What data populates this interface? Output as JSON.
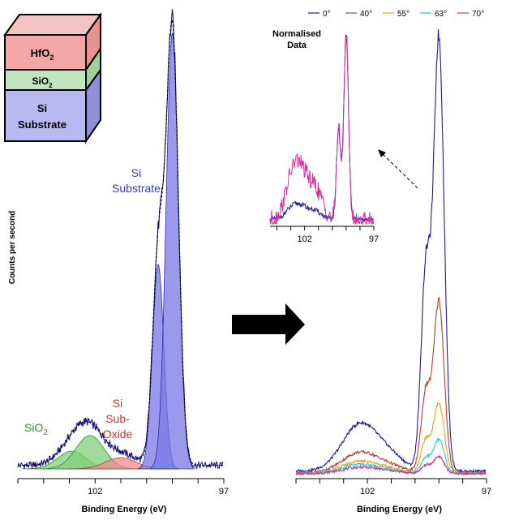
{
  "stack": {
    "hfo2": {
      "label": "HfO",
      "sub": "2"
    },
    "sio2": {
      "label": "SiO",
      "sub": "2"
    },
    "si": {
      "line1": "Si",
      "line2": "Substrate"
    },
    "colors": {
      "hfo2": "#f4a7a7",
      "sio2": "#bfe6bd",
      "si": "#b9b9f2"
    }
  },
  "y_axis_label": "Counts per second",
  "arrow_present": true,
  "chart_data": [
    {
      "type": "line",
      "title": "",
      "xlabel": "Binding Energy (eV)",
      "ylabel": "Counts per second",
      "x_reversed": true,
      "xlim": [
        105,
        97
      ],
      "ylim": [
        0,
        100
      ],
      "xticks": [
        105,
        104,
        103,
        102,
        101,
        100,
        99,
        98,
        97
      ],
      "xtick_labels": [
        "102",
        "97"
      ],
      "xtick_label_values": [
        102,
        97
      ],
      "annotations": [
        {
          "text": "SiO",
          "sub": "2",
          "color": "#2f8f2f"
        },
        {
          "text_lines": [
            "Si",
            "Sub-",
            "Oxide"
          ],
          "color": "#c0392b"
        },
        {
          "text_lines": [
            "Si",
            "Substrate"
          ],
          "color": "#3a3acf"
        }
      ],
      "components": [
        {
          "name": "SiO2 (low)",
          "color": "#2e8b2e",
          "fill": "#7fd07a",
          "center": 102.9,
          "width": 0.55,
          "amp": 4.0
        },
        {
          "name": "SiO2",
          "color": "#2e8b2e",
          "fill": "#7fd07a",
          "center": 102.2,
          "width": 0.55,
          "amp": 7.5
        },
        {
          "name": "Si Sub-Oxide",
          "color": "#c0392b",
          "fill": "#f08a8a",
          "center": 101.0,
          "width": 0.6,
          "amp": 2.5
        },
        {
          "name": "Si 2p1/2",
          "color": "#2b2bb0",
          "fill": "#7878e6",
          "center": 99.55,
          "width": 0.22,
          "amp": 46.0
        },
        {
          "name": "Si 2p3/2",
          "color": "#2b2bb0",
          "fill": "#7878e6",
          "center": 99.0,
          "width": 0.24,
          "amp": 98.0
        }
      ],
      "series_color": "#1a1a8c"
    },
    {
      "type": "line",
      "title": "",
      "xlabel": "Binding Energy (eV)",
      "x_reversed": true,
      "xlim": [
        105,
        97
      ],
      "ylim": [
        0,
        100
      ],
      "xticks": [
        105,
        104,
        103,
        102,
        101,
        100,
        99,
        98,
        97
      ],
      "xtick_labels": [
        "102",
        "97"
      ],
      "xtick_label_values": [
        102,
        97
      ],
      "legend_position": "top",
      "series": [
        {
          "name": "0°",
          "color": "#1c1c9c",
          "scale": 1.0,
          "oxide_amp": 10.5,
          "sub_amp": 96
        },
        {
          "name": "40°",
          "color": "#c0392b",
          "scale": 0.4,
          "oxide_amp": 4.5,
          "sub_amp": 38
        },
        {
          "name": "55°",
          "color": "#e8a317",
          "scale": 0.2,
          "oxide_amp": 2.7,
          "sub_amp": 15.5
        },
        {
          "name": "63°",
          "color": "#26c6da",
          "scale": 0.1,
          "oxide_amp": 2.0,
          "sub_amp": 7.5
        },
        {
          "name": "70°",
          "color": "#cc3399",
          "scale": 0.05,
          "oxide_amp": 1.4,
          "sub_amp": 3.8
        }
      ]
    },
    {
      "type": "line",
      "title": "Normalised Data",
      "title_lines": [
        "Normalised",
        "Data"
      ],
      "x_reversed": true,
      "xlim": [
        104.5,
        97
      ],
      "xtick_labels": [
        "102",
        "97"
      ],
      "xtick_label_values": [
        102,
        97
      ],
      "series": [
        {
          "name": "0°",
          "color": "#1c1c9c",
          "oxide_amp": 11
        },
        {
          "name": "70°",
          "color": "#e0309e",
          "oxide_amp": 40
        }
      ]
    }
  ]
}
